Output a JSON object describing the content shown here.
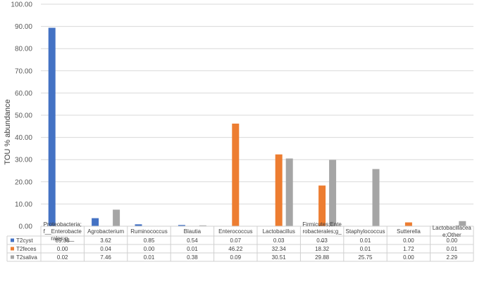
{
  "chart_data": {
    "type": "bar",
    "ylabel": "TOU % abundance",
    "ylim": [
      0,
      100
    ],
    "yticks": [
      "0.00",
      "10.00",
      "20.00",
      "30.00",
      "40.00",
      "50.00",
      "60.00",
      "70.00",
      "80.00",
      "90.00",
      "100.00"
    ],
    "grid": true,
    "legend": "data-table-below",
    "categories": [
      [
        "Proteobacteria;",
        "f__Enterobacte",
        "rales;g__"
      ],
      [
        "Agrobacterium"
      ],
      [
        "Ruminococcus"
      ],
      [
        "Blautia"
      ],
      [
        "Enterococcus"
      ],
      [
        "Lactobacillus"
      ],
      [
        "Firmicutes;Ente",
        "robacterales;g_",
        "_"
      ],
      [
        "Staphylococcus"
      ],
      [
        "Sutterella"
      ],
      [
        "Lactobacillacea",
        "e;Other"
      ]
    ],
    "series": [
      {
        "name": "T2cyst",
        "color": "#4472c4",
        "values": [
          89.38,
          3.62,
          0.85,
          0.54,
          0.07,
          0.03,
          0.03,
          0.01,
          0.0,
          0.0
        ],
        "labels": [
          "89.38",
          "3.62",
          "0.85",
          "0.54",
          "0.07",
          "0.03",
          "0.03",
          "0.01",
          "0.00",
          "0.00"
        ]
      },
      {
        "name": "T2feces",
        "color": "#ed7d31",
        "values": [
          0.0,
          0.04,
          0.0,
          0.01,
          46.22,
          32.34,
          18.32,
          0.01,
          1.72,
          0.01
        ],
        "labels": [
          "0.00",
          "0.04",
          "0.00",
          "0.01",
          "46.22",
          "32.34",
          "18.32",
          "0.01",
          "1.72",
          "0.01"
        ]
      },
      {
        "name": "T2saliva",
        "color": "#a5a5a5",
        "values": [
          0.02,
          7.46,
          0.01,
          0.38,
          0.09,
          30.51,
          29.88,
          25.75,
          0.0,
          2.29
        ],
        "labels": [
          "0.02",
          "7.46",
          "0.01",
          "0.38",
          "0.09",
          "30.51",
          "29.88",
          "25.75",
          "0.00",
          "2.29"
        ]
      }
    ]
  }
}
